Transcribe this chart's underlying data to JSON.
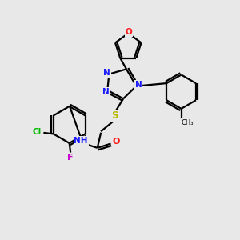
{
  "bg_color": "#e8e8e8",
  "atom_colors": {
    "C": "#000000",
    "N": "#1a1aff",
    "O": "#ff1a1a",
    "S": "#b8b800",
    "Cl": "#00bb00",
    "F": "#cc00cc",
    "H": "#707070"
  },
  "figsize": [
    3.0,
    3.0
  ],
  "dpi": 100
}
